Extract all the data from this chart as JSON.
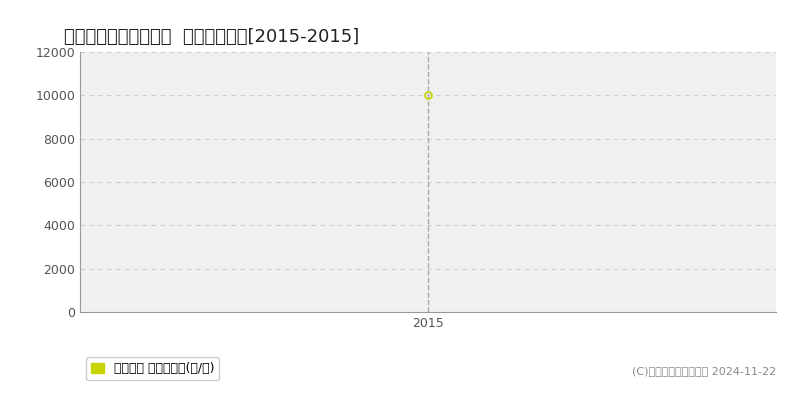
{
  "title": "比企郡ときがわ町日影  林地価格推移[2015-2015]",
  "years": [
    2015
  ],
  "values": [
    10000
  ],
  "ylim": [
    0,
    12000
  ],
  "yticks": [
    0,
    2000,
    4000,
    6000,
    8000,
    10000,
    12000
  ],
  "xtick_label": "2015",
  "line_color": "#c8d400",
  "marker_color": "#c8d400",
  "bg_color": "#ffffff",
  "plot_bg_color": "#f0f0f0",
  "grid_color": "#cccccc",
  "dashed_line_color": "#aaaaaa",
  "legend_text": "林地価格 平均坪単価(円/坪)",
  "copyright_text": "(C)土地価格ドットコム 2024-11-22",
  "title_fontsize": 13,
  "tick_fontsize": 9,
  "legend_fontsize": 9,
  "copyright_fontsize": 8
}
